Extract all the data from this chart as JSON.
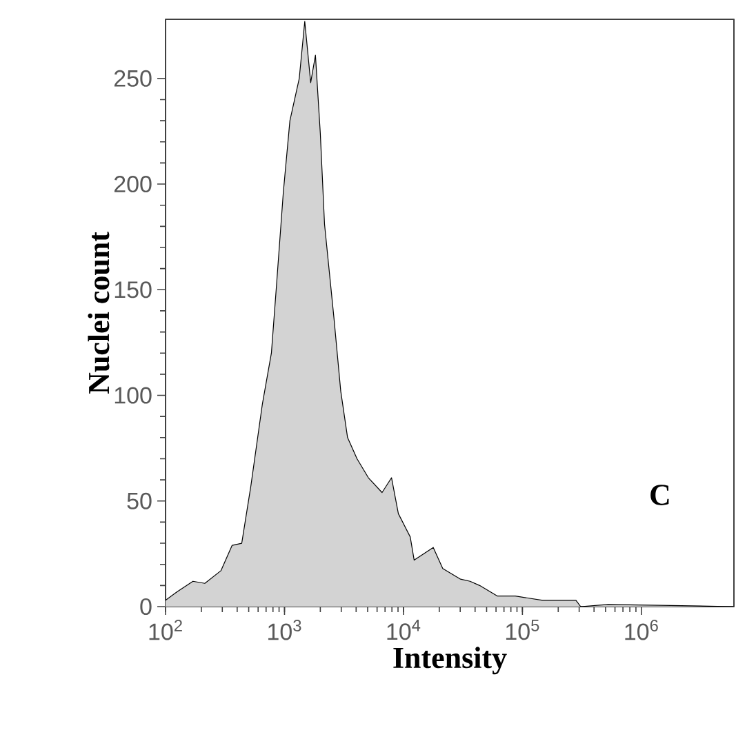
{
  "chart_data": {
    "type": "area",
    "xlabel": "Intensity",
    "ylabel": "Nuclei count",
    "annotations": [
      "C"
    ],
    "log": "x",
    "color": "#d3d3d3",
    "x": [
      100,
      125,
      170,
      214,
      292,
      363,
      437,
      521,
      652,
      776,
      851,
      977,
      1110,
      1330,
      1480,
      1660,
      1820,
      2000,
      2170,
      2600,
      2970,
      3390,
      4070,
      5070,
      6610,
      7940,
      9060,
      11400,
      12300,
      17800,
      21400,
      30200,
      36300,
      43700,
      61700,
      87100,
      148000,
      282000,
      309000,
      525000,
      6000000
    ],
    "values": [
      3,
      7,
      12,
      11,
      17,
      29,
      30,
      57,
      96,
      120,
      150,
      196,
      230,
      250,
      277,
      248,
      261,
      224,
      181,
      137,
      102,
      80,
      70,
      61,
      54,
      61,
      44,
      33,
      22,
      28,
      18,
      13,
      12,
      10,
      5,
      5,
      3,
      3,
      0,
      1,
      0
    ],
    "xlim": [
      100,
      6000000
    ],
    "ylim": [
      0,
      278
    ],
    "xticks": [
      {
        "value": 100,
        "label": "10$^{2}$"
      },
      {
        "value": 1000,
        "label": "10$^{3}$"
      },
      {
        "value": 10000,
        "label": "10$^{4}$"
      },
      {
        "value": 100000,
        "label": "10$^{5}$"
      },
      {
        "value": 1000000,
        "label": "10$^{6}$"
      }
    ],
    "yticks": [
      0,
      50,
      100,
      150,
      200,
      250
    ]
  }
}
